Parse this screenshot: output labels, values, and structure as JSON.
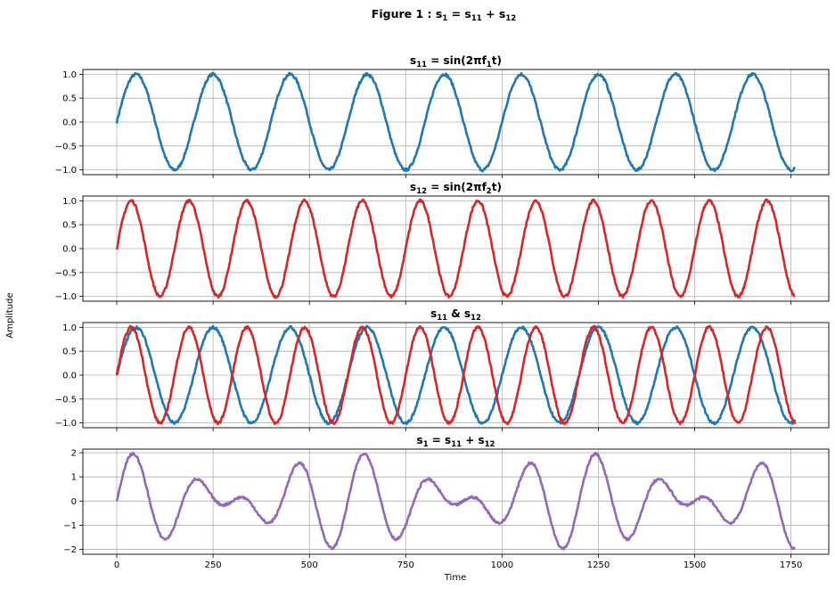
{
  "suptitle": {
    "prefix": "Figure 1 :  ",
    "parts": [
      "s",
      "1",
      " = s",
      "11",
      " + s",
      "12"
    ]
  },
  "ylabel": "Amplitude",
  "xlabel": "Time",
  "x_ticks": [
    "0",
    "250",
    "500",
    "750",
    "1000",
    "1250",
    "1500",
    "1750"
  ],
  "colors": {
    "s11": "#1f77b4",
    "s12": "#d62728",
    "s1": "#9467bd",
    "grid": "#b0b0b0"
  },
  "chart_data": [
    {
      "type": "line",
      "title_parts": [
        "s",
        "11",
        " = sin(2πf",
        "1",
        "t)"
      ],
      "x": {
        "start": 0,
        "end": 1760,
        "step": 2
      },
      "xlim": [
        -88,
        1848
      ],
      "ylim": [
        -1.1,
        1.1
      ],
      "yticks": [
        1.0,
        0.5,
        0.0,
        -0.5,
        -1.0
      ],
      "ytick_labels": [
        "1.0",
        "0.5",
        "0.0",
        "−0.5",
        "−1.0"
      ],
      "grid": true,
      "series": [
        {
          "expr": "sin",
          "period": 200,
          "color": "#1f77b4",
          "noise": 0.03
        }
      ]
    },
    {
      "type": "line",
      "title_parts": [
        "s",
        "12",
        " = sin(2πf",
        "2",
        "t)"
      ],
      "x": {
        "start": 0,
        "end": 1760,
        "step": 2
      },
      "xlim": [
        -88,
        1848
      ],
      "ylim": [
        -1.1,
        1.1
      ],
      "yticks": [
        1.0,
        0.5,
        0.0,
        -0.5,
        -1.0
      ],
      "ytick_labels": [
        "1.0",
        "0.5",
        "0.0",
        "−0.5",
        "−1.0"
      ],
      "grid": true,
      "series": [
        {
          "expr": "sin",
          "period": 150,
          "color": "#d62728",
          "noise": 0.03
        }
      ]
    },
    {
      "type": "line",
      "title_parts": [
        "s",
        "11",
        " & s",
        "12"
      ],
      "x": {
        "start": 0,
        "end": 1760,
        "step": 2
      },
      "xlim": [
        -88,
        1848
      ],
      "ylim": [
        -1.1,
        1.1
      ],
      "yticks": [
        1.0,
        0.5,
        0.0,
        -0.5,
        -1.0
      ],
      "ytick_labels": [
        "1.0",
        "0.5",
        "0.0",
        "−0.5",
        "−1.0"
      ],
      "grid": true,
      "series": [
        {
          "expr": "sin",
          "period": 200,
          "color": "#1f77b4",
          "noise": 0.03
        },
        {
          "expr": "sin",
          "period": 150,
          "color": "#d62728",
          "noise": 0.03
        }
      ]
    },
    {
      "type": "line",
      "title_parts": [
        "s",
        "1",
        " = s",
        "11",
        " + s",
        "12"
      ],
      "x": {
        "start": 0,
        "end": 1760,
        "step": 2
      },
      "xlim": [
        -88,
        1848
      ],
      "ylim": [
        -2.2,
        2.15
      ],
      "yticks": [
        2,
        1,
        0,
        -1,
        -2
      ],
      "ytick_labels": [
        "2",
        "1",
        "0",
        "−1",
        "−2"
      ],
      "grid": true,
      "series": [
        {
          "expr": "sum",
          "periods": [
            200,
            150
          ],
          "color": "#9467bd",
          "noise": 0.05
        }
      ]
    }
  ]
}
